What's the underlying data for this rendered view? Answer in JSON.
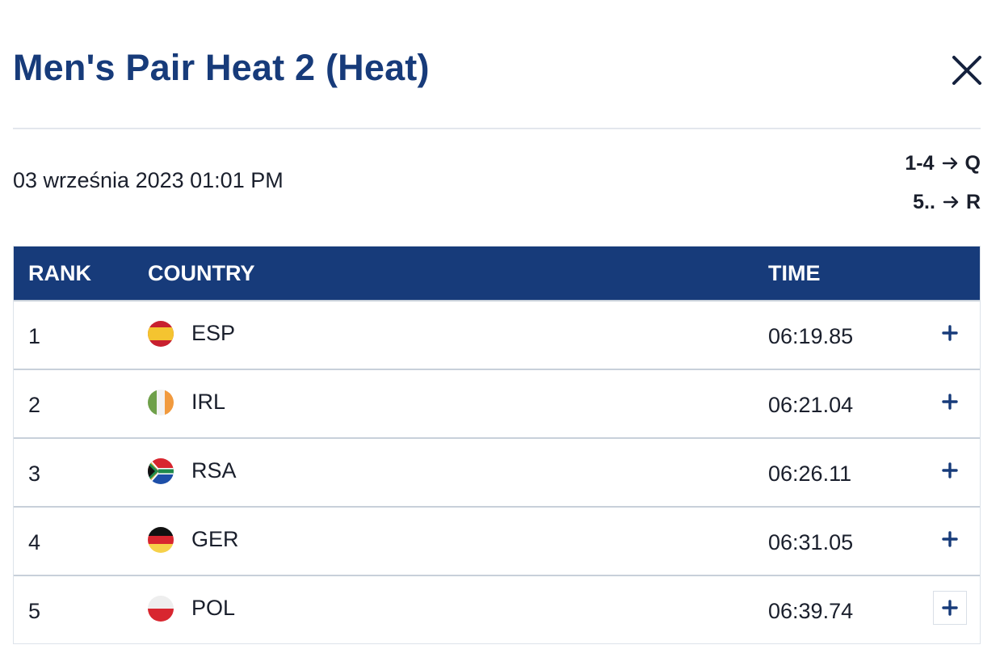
{
  "modal": {
    "title": "Men's Pair Heat 2 (Heat)",
    "close_icon": "close-icon"
  },
  "event": {
    "date": "03 września 2023 01:01 PM",
    "progression": [
      {
        "range": "1-4",
        "target": "Q"
      },
      {
        "range": "5..",
        "target": "R"
      }
    ]
  },
  "table": {
    "headers": {
      "rank": "RANK",
      "country": "COUNTRY",
      "time": "TIME"
    },
    "rows": [
      {
        "rank": "1",
        "country": "ESP",
        "time": "06:19.85",
        "flag": "spain-flag-icon"
      },
      {
        "rank": "2",
        "country": "IRL",
        "time": "06:21.04",
        "flag": "ireland-flag-icon"
      },
      {
        "rank": "3",
        "country": "RSA",
        "time": "06:26.11",
        "flag": "south-africa-flag-icon"
      },
      {
        "rank": "4",
        "country": "GER",
        "time": "06:31.05",
        "flag": "germany-flag-icon"
      },
      {
        "rank": "5",
        "country": "POL",
        "time": "06:39.74",
        "flag": "poland-flag-icon"
      }
    ]
  },
  "colors": {
    "header_bg": "#173b7a",
    "title": "#173b7a",
    "text": "#1a1f2c"
  }
}
